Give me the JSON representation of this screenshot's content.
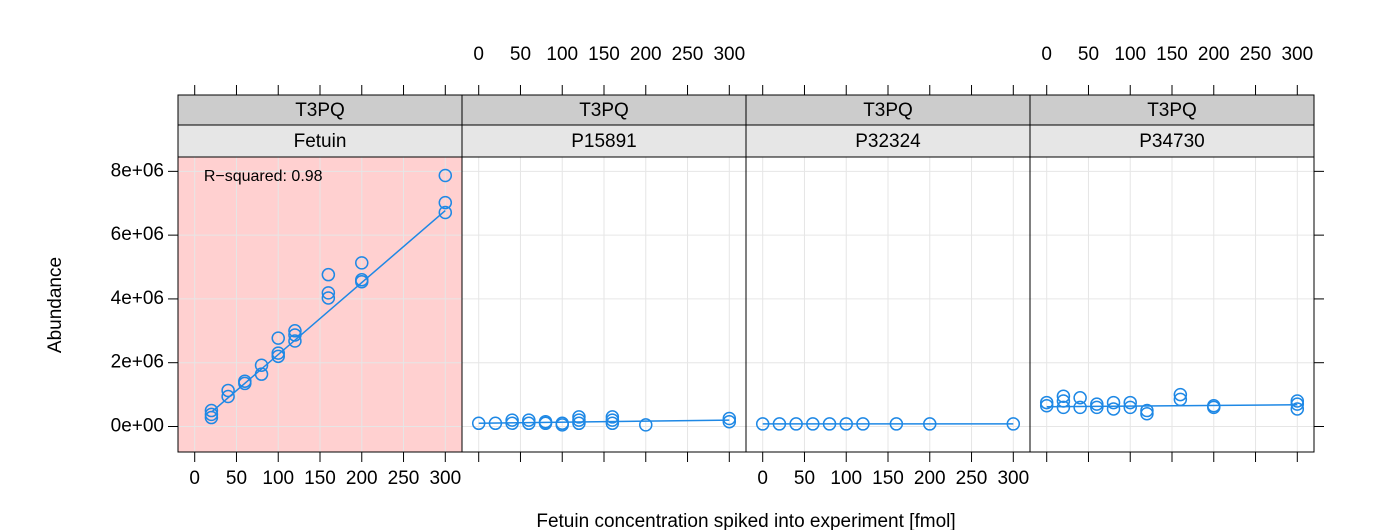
{
  "chart_data": {
    "type": "scatter",
    "xlabel": "Fetuin concentration spiked into experiment [fmol]",
    "ylabel": "Abundance",
    "xlim": [
      -20,
      320
    ],
    "ylim": [
      -800000,
      8450000
    ],
    "xticks": [
      0,
      50,
      100,
      150,
      200,
      250,
      300
    ],
    "yticks": [
      {
        "value": 0,
        "label": "0e+00"
      },
      {
        "value": 2000000,
        "label": "2e+06"
      },
      {
        "value": 4000000,
        "label": "4e+06"
      },
      {
        "value": 6000000,
        "label": "6e+06"
      },
      {
        "value": 8000000,
        "label": "8e+06"
      }
    ],
    "grid": true,
    "color": "#1e88e5",
    "panels": [
      {
        "strip_top": "T3PQ",
        "strip": "Fetuin",
        "annotation": "R−squared: 0.98",
        "highlight": "#ffd0d0",
        "x": [
          20,
          20,
          20,
          40,
          40,
          60,
          60,
          80,
          80,
          100,
          100,
          100,
          120,
          120,
          120,
          160,
          160,
          160,
          200,
          200,
          200,
          300,
          300,
          300
        ],
        "values": [
          500000,
          380000,
          280000,
          1130000,
          940000,
          1420000,
          1350000,
          1920000,
          1640000,
          2770000,
          2300000,
          2200000,
          3000000,
          2870000,
          2680000,
          4760000,
          4190000,
          4030000,
          5130000,
          4600000,
          4540000,
          7870000,
          7020000,
          6710000
        ],
        "fit": {
          "x": [
            20,
            300
          ],
          "values": [
            450000,
            6770000
          ]
        }
      },
      {
        "strip_top": "T3PQ",
        "strip": "P15891",
        "x": [
          0,
          20,
          40,
          40,
          60,
          60,
          80,
          80,
          100,
          100,
          120,
          120,
          120,
          160,
          160,
          160,
          200,
          300,
          300
        ],
        "values": [
          100000,
          100000,
          200000,
          100000,
          200000,
          100000,
          150000,
          100000,
          100000,
          50000,
          300000,
          200000,
          100000,
          300000,
          200000,
          100000,
          50000,
          250000,
          150000
        ],
        "fit": {
          "x": [
            0,
            300
          ],
          "values": [
            100000,
            200000
          ]
        }
      },
      {
        "strip_top": "T3PQ",
        "strip": "P32324",
        "x": [
          0,
          20,
          40,
          60,
          80,
          100,
          120,
          160,
          200,
          300
        ],
        "values": [
          80000,
          80000,
          80000,
          80000,
          80000,
          80000,
          80000,
          80000,
          80000,
          80000
        ],
        "fit": {
          "x": [
            0,
            300
          ],
          "values": [
            80000,
            80000
          ]
        }
      },
      {
        "strip_top": "T3PQ",
        "strip": "P34730",
        "x": [
          0,
          0,
          20,
          20,
          20,
          40,
          40,
          60,
          60,
          80,
          80,
          100,
          100,
          120,
          120,
          160,
          160,
          200,
          200,
          300,
          300,
          300
        ],
        "values": [
          750000,
          650000,
          950000,
          800000,
          600000,
          900000,
          600000,
          700000,
          600000,
          750000,
          550000,
          750000,
          600000,
          500000,
          400000,
          1000000,
          850000,
          650000,
          600000,
          800000,
          700000,
          550000
        ],
        "fit": {
          "x": [
            0,
            300
          ],
          "values": [
            620000,
            680000
          ]
        }
      }
    ]
  }
}
